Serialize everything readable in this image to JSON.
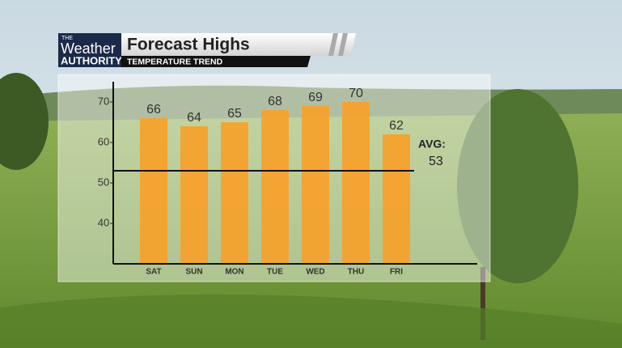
{
  "branding": {
    "the": "THE",
    "weather": "Weather",
    "authority": "AUTHORITY"
  },
  "chart_data": {
    "type": "bar",
    "title": "Forecast Highs",
    "subtitle": "TEMPERATURE TREND",
    "categories": [
      "SAT",
      "SUN",
      "MON",
      "TUE",
      "WED",
      "THU",
      "FRI"
    ],
    "values": [
      66,
      64,
      65,
      68,
      69,
      70,
      62
    ],
    "color": "#f7a12a",
    "ylim": [
      30,
      75
    ],
    "yticks": [
      40,
      50,
      60,
      70
    ],
    "average": {
      "label": "AVG:",
      "value": 53
    }
  }
}
